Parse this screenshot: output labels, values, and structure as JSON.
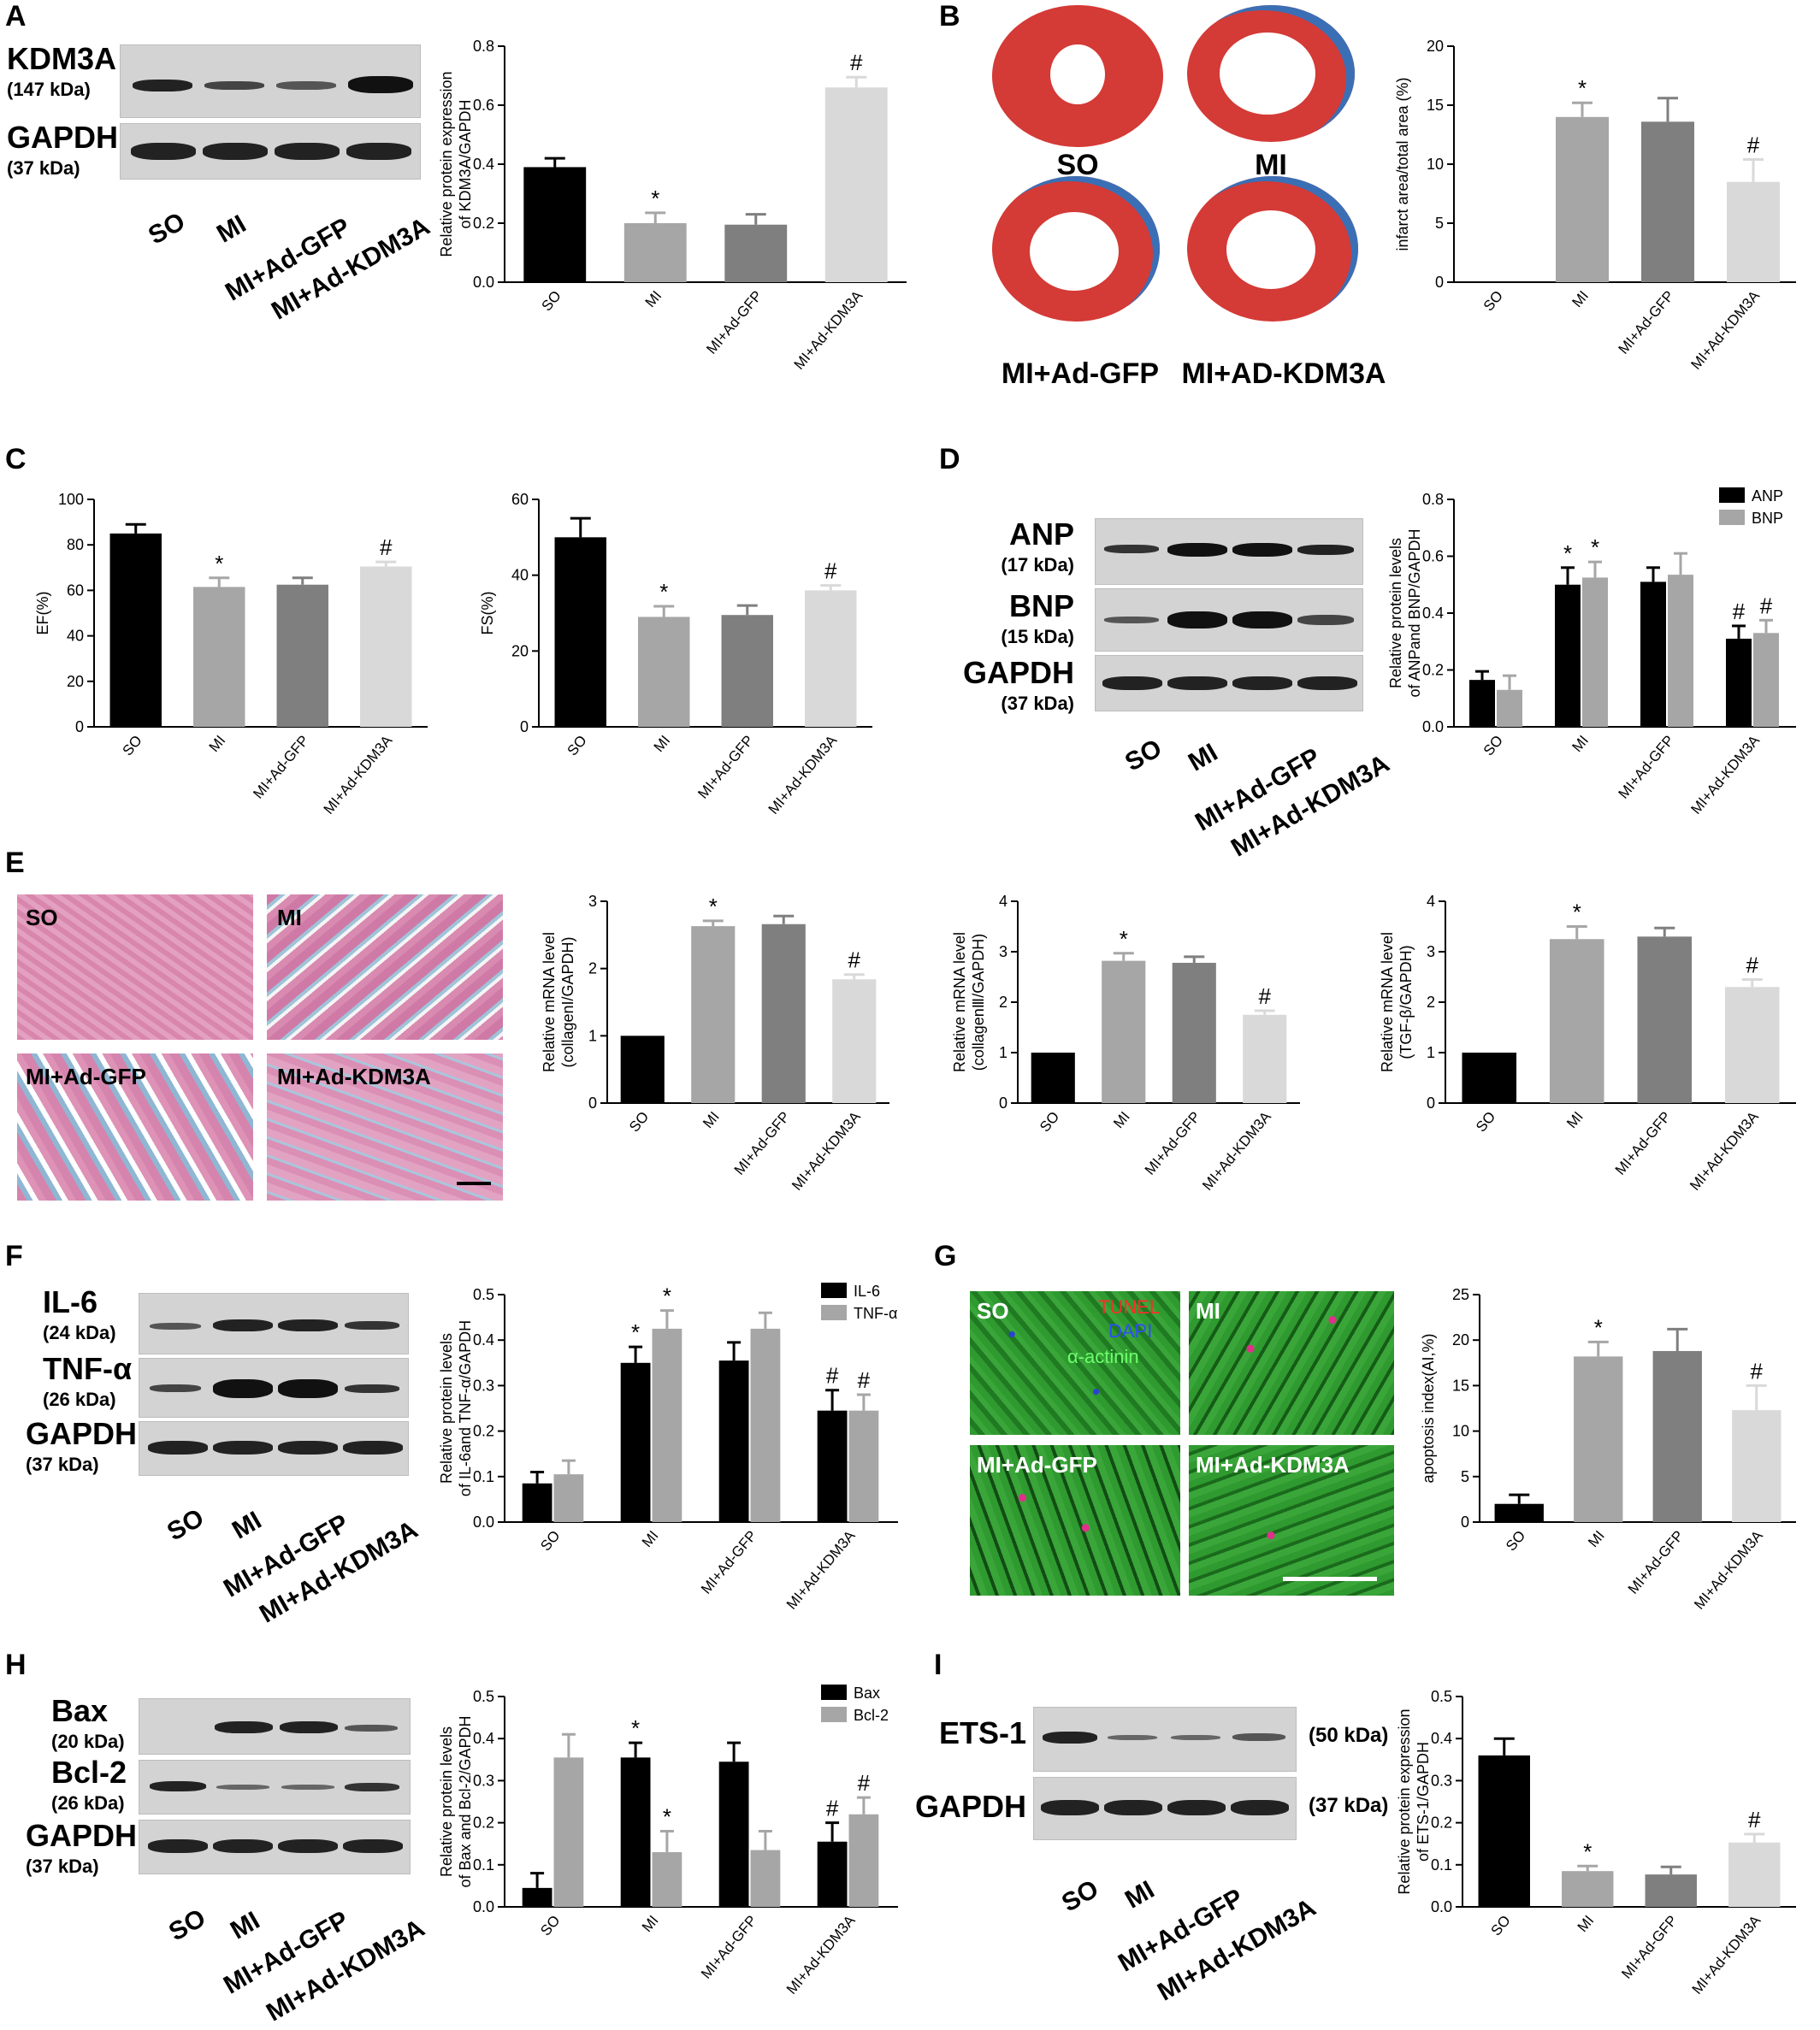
{
  "panels": {
    "A": {
      "label": "A",
      "blot_rows": [
        {
          "name": "KDM3A",
          "kda": "(147 kDa)"
        },
        {
          "name": "GAPDH",
          "kda": "(37 kDa)"
        }
      ],
      "groups": [
        "SO",
        "MI",
        "MI+Ad-GFP",
        "MI+Ad-KDM3A"
      ]
    },
    "B": {
      "label": "B",
      "heart_labels": [
        "SO",
        "MI",
        "MI+Ad-GFP",
        "MI+AD-KDM3A"
      ]
    },
    "C": {
      "label": "C"
    },
    "D": {
      "label": "D",
      "blot_rows": [
        {
          "name": "ANP",
          "kda": "(17 kDa)"
        },
        {
          "name": "BNP",
          "kda": "(15 kDa)"
        },
        {
          "name": "GAPDH",
          "kda": "(37 kDa)"
        }
      ],
      "groups": [
        "SO",
        "MI",
        "MI+Ad-GFP",
        "MI+Ad-KDM3A"
      ]
    },
    "E": {
      "label": "E",
      "tile_labels": [
        "SO",
        "MI",
        "MI+Ad-GFP",
        "MI+Ad-KDM3A"
      ]
    },
    "F": {
      "label": "F",
      "blot_rows": [
        {
          "name": "IL-6",
          "kda": "(24 kDa)"
        },
        {
          "name": "TNF-α",
          "kda": "(26 kDa)"
        },
        {
          "name": "GAPDH",
          "kda": "(37 kDa)"
        }
      ],
      "groups": [
        "SO",
        "MI",
        "MI+Ad-GFP",
        "MI+Ad-KDM3A"
      ]
    },
    "G": {
      "label": "G",
      "tile_labels": [
        "SO",
        "MI",
        "MI+Ad-GFP",
        "MI+Ad-KDM3A"
      ],
      "stain_labels": {
        "tunel": "TUNEL",
        "dapi": "DAPI",
        "actinin": "α-actinin"
      }
    },
    "H": {
      "label": "H",
      "blot_rows": [
        {
          "name": "Bax",
          "kda": "(20 kDa)"
        },
        {
          "name": "Bcl-2",
          "kda": "(26 kDa)"
        },
        {
          "name": "GAPDH",
          "kda": "(37 kDa)"
        }
      ],
      "groups": [
        "SO",
        "MI",
        "MI+Ad-GFP",
        "MI+Ad-KDM3A"
      ]
    },
    "I": {
      "label": "I",
      "blot_rows": [
        {
          "name": "ETS-1",
          "kda": "(50 kDa)"
        },
        {
          "name": "GAPDH",
          "kda": "(37 kDa)"
        }
      ],
      "groups": [
        "SO",
        "MI",
        "MI+Ad-GFP",
        "MI+Ad-KDM3A"
      ]
    }
  },
  "colors": {
    "black": "#000000",
    "light_gray": "#a6a6a6",
    "dark_gray": "#7f7f7f",
    "pale_gray": "#d9d9d9"
  },
  "chart_data": [
    {
      "id": "A",
      "type": "bar",
      "ylabel": "Relative protein expression\nof KDM3A/GAPDH",
      "categories": [
        "SO",
        "MI",
        "MI+Ad-GFP",
        "MI+Ad-KDM3A"
      ],
      "values": [
        0.39,
        0.2,
        0.195,
        0.66
      ],
      "errors": [
        0.03,
        0.035,
        0.035,
        0.035
      ],
      "marks": [
        "",
        "*",
        "",
        "#"
      ],
      "ylim": [
        0,
        0.8
      ],
      "ticks": [
        "0.0",
        "0.2",
        "0.4",
        "0.6",
        "0.8"
      ]
    },
    {
      "id": "B",
      "type": "bar",
      "ylabel": "infarct area/total area (%)",
      "categories": [
        "SO",
        "MI",
        "MI+Ad-GFP",
        "MI+Ad-KDM3A"
      ],
      "values": [
        0,
        14,
        13.6,
        8.5
      ],
      "errors": [
        0,
        1.2,
        2,
        1.9
      ],
      "marks": [
        "",
        "*",
        "",
        "#"
      ],
      "ylim": [
        0,
        20
      ],
      "ticks": [
        "0",
        "5",
        "10",
        "15",
        "20"
      ]
    },
    {
      "id": "C-EF",
      "type": "bar",
      "ylabel": "EF(%)",
      "categories": [
        "SO",
        "MI",
        "MI+Ad-GFP",
        "MI+Ad-KDM3A"
      ],
      "values": [
        85,
        61.5,
        62.5,
        70.5
      ],
      "errors": [
        4,
        4,
        3,
        2
      ],
      "marks": [
        "",
        "*",
        "",
        "#"
      ],
      "ylim": [
        0,
        100
      ],
      "ticks": [
        "0",
        "20",
        "40",
        "60",
        "80",
        "100"
      ]
    },
    {
      "id": "C-FS",
      "type": "bar",
      "ylabel": "FS(%)",
      "categories": [
        "SO",
        "MI",
        "MI+Ad-GFP",
        "MI+Ad-KDM3A"
      ],
      "values": [
        50,
        29,
        29.5,
        36
      ],
      "errors": [
        5,
        2.8,
        2.5,
        1.3
      ],
      "marks": [
        "",
        "*",
        "",
        "#"
      ],
      "ylim": [
        0,
        60
      ],
      "ticks": [
        "0",
        "20",
        "40",
        "60"
      ]
    },
    {
      "id": "D",
      "type": "grouped-bar",
      "ylabel": "Relative protein levels\nof ANPand BNP/GAPDH",
      "categories": [
        "SO",
        "MI",
        "MI+Ad-GFP",
        "MI+Ad-KDM3A"
      ],
      "series": [
        {
          "name": "ANP",
          "values": [
            0.165,
            0.5,
            0.51,
            0.31
          ],
          "errors": [
            0.03,
            0.06,
            0.05,
            0.045
          ],
          "marks": [
            "",
            "*",
            "",
            "#"
          ]
        },
        {
          "name": "BNP",
          "values": [
            0.13,
            0.525,
            0.535,
            0.33
          ],
          "errors": [
            0.05,
            0.055,
            0.075,
            0.045
          ],
          "marks": [
            "",
            "*",
            "",
            "#"
          ]
        }
      ],
      "ylim": [
        0,
        0.8
      ],
      "ticks": [
        "0.0",
        "0.2",
        "0.4",
        "0.6",
        "0.8"
      ],
      "legend": "top-right"
    },
    {
      "id": "E-1",
      "type": "bar",
      "ylabel": "Relative mRNA level\n(collagenI/GAPDH)",
      "categories": [
        "SO",
        "MI",
        "MI+Ad-GFP",
        "MI+Ad-KDM3A"
      ],
      "values": [
        1,
        2.63,
        2.66,
        1.84
      ],
      "errors": [
        0,
        0.08,
        0.12,
        0.07
      ],
      "marks": [
        "",
        "*",
        "",
        "#"
      ],
      "ylim": [
        0,
        3
      ],
      "ticks": [
        "0",
        "1",
        "2",
        "3"
      ]
    },
    {
      "id": "E-2",
      "type": "bar",
      "ylabel": "Relative mRNA level\n(collagenⅢ/GAPDH)",
      "categories": [
        "SO",
        "MI",
        "MI+Ad-GFP",
        "MI+Ad-KDM3A"
      ],
      "values": [
        1,
        2.82,
        2.78,
        1.75
      ],
      "errors": [
        0,
        0.15,
        0.12,
        0.08
      ],
      "marks": [
        "",
        "*",
        "",
        "#"
      ],
      "ylim": [
        0,
        4
      ],
      "ticks": [
        "0",
        "1",
        "2",
        "3",
        "4"
      ]
    },
    {
      "id": "E-3",
      "type": "bar",
      "ylabel": "Relative mRNA level\n(TGF-β/GAPDH)",
      "categories": [
        "SO",
        "MI",
        "MI+Ad-GFP",
        "MI+Ad-KDM3A"
      ],
      "values": [
        1,
        3.25,
        3.3,
        2.3
      ],
      "errors": [
        0,
        0.25,
        0.17,
        0.15
      ],
      "marks": [
        "",
        "*",
        "",
        "#"
      ],
      "ylim": [
        0,
        4
      ],
      "ticks": [
        "0",
        "1",
        "2",
        "3",
        "4"
      ]
    },
    {
      "id": "F",
      "type": "grouped-bar",
      "ylabel": "Relative protein levels\nof IL-6and TNF-α/GAPDH",
      "categories": [
        "SO",
        "MI",
        "MI+Ad-GFP",
        "MI+Ad-KDM3A"
      ],
      "series": [
        {
          "name": "IL-6",
          "values": [
            0.085,
            0.35,
            0.355,
            0.245
          ],
          "errors": [
            0.025,
            0.035,
            0.04,
            0.045
          ],
          "marks": [
            "",
            "*",
            "",
            "#"
          ]
        },
        {
          "name": "TNF-α",
          "values": [
            0.105,
            0.425,
            0.425,
            0.245
          ],
          "errors": [
            0.03,
            0.04,
            0.035,
            0.035
          ],
          "marks": [
            "",
            "*",
            "",
            "#"
          ]
        }
      ],
      "ylim": [
        0,
        0.5
      ],
      "ticks": [
        "0.0",
        "0.1",
        "0.2",
        "0.3",
        "0.4",
        "0.5"
      ],
      "legend": "top-right"
    },
    {
      "id": "G",
      "type": "bar",
      "ylabel": "apoptosis index(AI,%)",
      "categories": [
        "SO",
        "MI",
        "MI+Ad-GFP",
        "MI+Ad-KDM3A"
      ],
      "values": [
        2,
        18.2,
        18.8,
        12.3
      ],
      "errors": [
        1,
        1.6,
        2.4,
        2.7
      ],
      "marks": [
        "",
        "*",
        "",
        "#"
      ],
      "ylim": [
        0,
        25
      ],
      "ticks": [
        "0",
        "5",
        "10",
        "15",
        "20",
        "25"
      ]
    },
    {
      "id": "H",
      "type": "grouped-bar",
      "ylabel": "Relative protein levels\nof Bax and Bcl-2/GAPDH",
      "categories": [
        "SO",
        "MI",
        "MI+Ad-GFP",
        "MI+Ad-KDM3A"
      ],
      "series": [
        {
          "name": "Bax",
          "values": [
            0.045,
            0.355,
            0.345,
            0.155
          ],
          "errors": [
            0.035,
            0.035,
            0.045,
            0.045
          ],
          "marks": [
            "",
            "*",
            "",
            "#"
          ]
        },
        {
          "name": "Bcl-2",
          "values": [
            0.355,
            0.13,
            0.135,
            0.22
          ],
          "errors": [
            0.055,
            0.05,
            0.045,
            0.04
          ],
          "marks": [
            "",
            "*",
            "",
            "#"
          ]
        }
      ],
      "ylim": [
        0,
        0.5
      ],
      "ticks": [
        "0.0",
        "0.1",
        "0.2",
        "0.3",
        "0.4",
        "0.5"
      ],
      "legend": "top-right"
    },
    {
      "id": "I",
      "type": "bar",
      "ylabel": "Relative protein expression\nof ETS-1/GAPDH",
      "categories": [
        "SO",
        "MI",
        "MI+Ad-GFP",
        "MI+Ad-KDM3A"
      ],
      "values": [
        0.36,
        0.085,
        0.077,
        0.153
      ],
      "errors": [
        0.04,
        0.012,
        0.018,
        0.02
      ],
      "marks": [
        "",
        "*",
        "",
        "#"
      ],
      "ylim": [
        0,
        0.5
      ],
      "ticks": [
        "0.0",
        "0.1",
        "0.2",
        "0.3",
        "0.4",
        "0.5"
      ]
    }
  ]
}
